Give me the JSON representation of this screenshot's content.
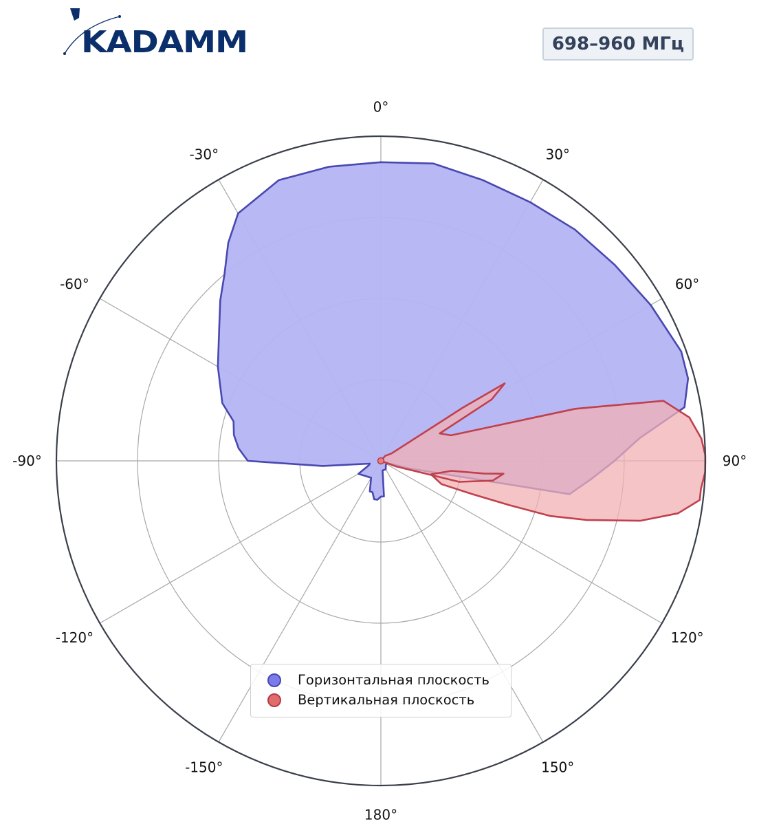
{
  "logo": {
    "text": "KADAMM",
    "color": "#0b2f6b"
  },
  "badge": {
    "text": "698–960 МГц"
  },
  "chart_data": {
    "type": "polar",
    "theta_direction": "clockwise",
    "theta_zero": "top",
    "theta_ticks": [
      "0°",
      "30°",
      "60°",
      "90°",
      "120°",
      "150°",
      "180°",
      "-150°",
      "-120°",
      "-90°",
      "-60°",
      "-30°"
    ],
    "rings": 4,
    "radial_labels": false,
    "grid": true,
    "legend_position": "lower-center",
    "series": [
      {
        "name": "Горизонтальная плоскость",
        "color": "#6b6be6",
        "fill": "#b4b4f4",
        "stroke": "#4848b0",
        "points": [
          [
            0,
            0.92
          ],
          [
            10,
            0.93
          ],
          [
            20,
            0.92
          ],
          [
            30,
            0.92
          ],
          [
            40,
            0.93
          ],
          [
            50,
            0.94
          ],
          [
            60,
            0.96
          ],
          [
            70,
            0.985
          ],
          [
            75,
            0.98
          ],
          [
            80,
            0.95
          ],
          [
            85,
            0.8
          ],
          [
            90,
            0.72
          ],
          [
            95,
            0.65
          ],
          [
            100,
            0.59
          ],
          [
            105,
            0.09
          ],
          [
            110,
            0.02
          ],
          [
            130,
            0.02
          ],
          [
            150,
            0.03
          ],
          [
            170,
            0.03
          ],
          [
            175,
            0.11
          ],
          [
            180,
            0.11
          ],
          [
            185,
            0.12
          ],
          [
            190,
            0.12
          ],
          [
            195,
            0.1
          ],
          [
            200,
            0.1
          ],
          [
            210,
            0.06
          ],
          [
            240,
            0.08
          ],
          [
            250,
            0.04
          ],
          [
            256,
            0.035
          ],
          [
            265,
            0.18
          ],
          [
            270,
            0.41
          ],
          [
            275,
            0.44
          ],
          [
            280,
            0.46
          ],
          [
            285,
            0.47
          ],
          [
            290,
            0.52
          ],
          [
            300,
            0.58
          ],
          [
            310,
            0.65
          ],
          [
            315,
            0.7
          ],
          [
            320,
            0.75
          ],
          [
            325,
            0.82
          ],
          [
            330,
            0.88
          ],
          [
            340,
            0.92
          ],
          [
            350,
            0.92
          ],
          [
            360,
            0.92
          ]
        ]
      },
      {
        "name": "Вертикальная плоскость",
        "color": "#e06c6c",
        "fill": "#f2b0b4",
        "stroke": "#c0404c",
        "points": [
          [
            0,
            0.0
          ],
          [
            40,
            0.02
          ],
          [
            55,
            0.04
          ],
          [
            57,
            0.3
          ],
          [
            58,
            0.45
          ],
          [
            61,
            0.39
          ],
          [
            65,
            0.2
          ],
          [
            70,
            0.23
          ],
          [
            75,
            0.62
          ],
          [
            78,
            0.89
          ],
          [
            82,
            0.96
          ],
          [
            86,
            0.99
          ],
          [
            89,
            1.0
          ],
          [
            92,
            1.0
          ],
          [
            95,
            0.99
          ],
          [
            97,
            0.99
          ],
          [
            100,
            0.93
          ],
          [
            103,
            0.82
          ],
          [
            106,
            0.66
          ],
          [
            108,
            0.55
          ],
          [
            109,
            0.42
          ],
          [
            110,
            0.3
          ],
          [
            111,
            0.2
          ],
          [
            105,
            0.16
          ],
          [
            98,
            0.22
          ],
          [
            97,
            0.32
          ],
          [
            96,
            0.38
          ],
          [
            100,
            0.35
          ],
          [
            105,
            0.25
          ],
          [
            110,
            0.05
          ],
          [
            140,
            0.0
          ],
          [
            360,
            0.0
          ]
        ]
      }
    ]
  }
}
